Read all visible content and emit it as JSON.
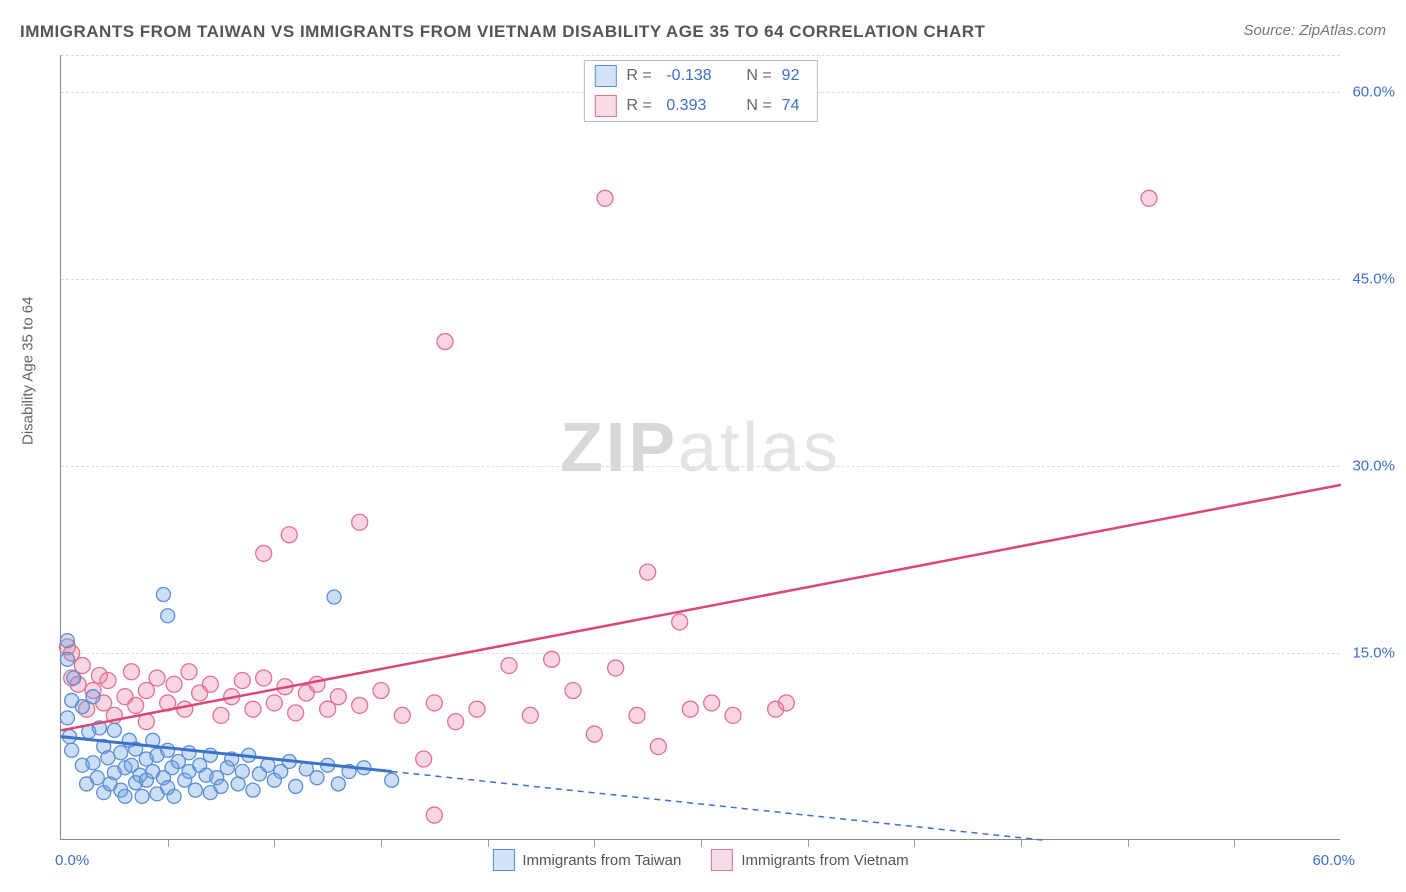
{
  "title": "IMMIGRANTS FROM TAIWAN VS IMMIGRANTS FROM VIETNAM DISABILITY AGE 35 TO 64 CORRELATION CHART",
  "source": "Source: ZipAtlas.com",
  "ylabel": "Disability Age 35 to 64",
  "watermark_a": "ZIP",
  "watermark_b": "atlas",
  "chart": {
    "type": "scatter",
    "xlim": [
      0,
      60
    ],
    "ylim": [
      0,
      63
    ],
    "x_axis_min_label": "0.0%",
    "x_axis_max_label": "60.0%",
    "x_tick_positions": [
      5,
      10,
      15,
      20,
      25,
      30,
      35,
      40,
      45,
      50,
      55
    ],
    "y_gridlines": [
      15,
      30,
      45,
      60,
      63
    ],
    "y_tick_labels": {
      "15": "15.0%",
      "30": "30.0%",
      "45": "45.0%",
      "60": "60.0%"
    },
    "background_color": "#ffffff",
    "grid_color": "#dcdcdc",
    "axis_color": "#888888",
    "tick_label_color": "#3f6fc6",
    "series": [
      {
        "name": "Immigrants from Taiwan",
        "color_fill": "rgba(110, 160, 230, 0.35)",
        "color_stroke": "#5a8fd6",
        "swatch_fill": "#d2e3f7",
        "swatch_border": "#5a8fd6",
        "R": "-0.138",
        "N": "92",
        "marker_radius": 7,
        "trend": {
          "x1": 0,
          "y1": 8.3,
          "x2": 15.5,
          "y2": 5.5,
          "stroke": "#3a73c9",
          "width": 3,
          "solid": true
        },
        "trend_ext": {
          "x1": 15.5,
          "y1": 5.5,
          "x2": 46,
          "y2": 0,
          "stroke": "#3a73c9",
          "width": 1.5,
          "dash": "6 5"
        },
        "points": [
          [
            0.3,
            14.5
          ],
          [
            0.3,
            16.0
          ],
          [
            0.5,
            11.2
          ],
          [
            0.3,
            9.8
          ],
          [
            0.4,
            8.3
          ],
          [
            0.6,
            13.0
          ],
          [
            0.5,
            7.2
          ],
          [
            1.0,
            10.7
          ],
          [
            1.0,
            6.0
          ],
          [
            1.2,
            4.5
          ],
          [
            1.3,
            8.7
          ],
          [
            1.5,
            11.5
          ],
          [
            1.5,
            6.2
          ],
          [
            1.7,
            5.0
          ],
          [
            1.8,
            9.0
          ],
          [
            2.0,
            3.8
          ],
          [
            2.0,
            7.5
          ],
          [
            2.2,
            6.6
          ],
          [
            2.3,
            4.5
          ],
          [
            2.5,
            5.4
          ],
          [
            2.5,
            8.8
          ],
          [
            2.8,
            7.0
          ],
          [
            2.8,
            4.0
          ],
          [
            3.0,
            5.8
          ],
          [
            3.0,
            3.5
          ],
          [
            3.2,
            8.0
          ],
          [
            3.3,
            6.0
          ],
          [
            3.5,
            4.6
          ],
          [
            3.5,
            7.3
          ],
          [
            3.7,
            5.2
          ],
          [
            3.8,
            3.5
          ],
          [
            4.0,
            6.5
          ],
          [
            4.0,
            4.8
          ],
          [
            4.3,
            5.5
          ],
          [
            4.3,
            8.0
          ],
          [
            4.5,
            3.7
          ],
          [
            4.5,
            6.8
          ],
          [
            4.8,
            5.0
          ],
          [
            5.0,
            4.2
          ],
          [
            5.0,
            7.2
          ],
          [
            5.2,
            5.8
          ],
          [
            5.3,
            3.5
          ],
          [
            5.5,
            6.3
          ],
          [
            5.8,
            4.8
          ],
          [
            6.0,
            5.5
          ],
          [
            6.0,
            7.0
          ],
          [
            6.3,
            4.0
          ],
          [
            6.5,
            6.0
          ],
          [
            6.8,
            5.2
          ],
          [
            7.0,
            3.8
          ],
          [
            7.0,
            6.8
          ],
          [
            7.3,
            5.0
          ],
          [
            7.5,
            4.3
          ],
          [
            7.8,
            5.8
          ],
          [
            8.0,
            6.5
          ],
          [
            8.3,
            4.5
          ],
          [
            8.5,
            5.5
          ],
          [
            8.8,
            6.8
          ],
          [
            9.0,
            4.0
          ],
          [
            9.3,
            5.3
          ],
          [
            9.7,
            6.0
          ],
          [
            10.0,
            4.8
          ],
          [
            10.3,
            5.5
          ],
          [
            10.7,
            6.3
          ],
          [
            11.0,
            4.3
          ],
          [
            11.5,
            5.7
          ],
          [
            12.0,
            5.0
          ],
          [
            12.5,
            6.0
          ],
          [
            13.0,
            4.5
          ],
          [
            13.5,
            5.5
          ],
          [
            14.2,
            5.8
          ],
          [
            15.5,
            4.8
          ],
          [
            4.8,
            19.7
          ],
          [
            5.0,
            18.0
          ],
          [
            12.8,
            19.5
          ]
        ]
      },
      {
        "name": "Immigrants from Vietnam",
        "color_fill": "rgba(235, 120, 150, 0.30)",
        "color_stroke": "#e37095",
        "swatch_fill": "#f9dde5",
        "swatch_border": "#e37095",
        "R": "0.393",
        "N": "74",
        "marker_radius": 8,
        "trend": {
          "x1": 0,
          "y1": 8.8,
          "x2": 60,
          "y2": 28.5,
          "stroke": "#d94876",
          "width": 2.5,
          "solid": true
        },
        "points": [
          [
            0.3,
            15.5
          ],
          [
            0.5,
            13.0
          ],
          [
            0.8,
            12.5
          ],
          [
            1.0,
            14.0
          ],
          [
            1.2,
            10.5
          ],
          [
            1.5,
            12.0
          ],
          [
            1.8,
            13.2
          ],
          [
            2.0,
            11.0
          ],
          [
            2.2,
            12.8
          ],
          [
            2.5,
            10.0
          ],
          [
            3.0,
            11.5
          ],
          [
            3.3,
            13.5
          ],
          [
            3.5,
            10.8
          ],
          [
            4.0,
            12.0
          ],
          [
            4.0,
            9.5
          ],
          [
            4.5,
            13.0
          ],
          [
            5.0,
            11.0
          ],
          [
            5.3,
            12.5
          ],
          [
            5.8,
            10.5
          ],
          [
            6.0,
            13.5
          ],
          [
            6.5,
            11.8
          ],
          [
            7.0,
            12.5
          ],
          [
            7.5,
            10.0
          ],
          [
            8.0,
            11.5
          ],
          [
            8.5,
            12.8
          ],
          [
            9.0,
            10.5
          ],
          [
            9.5,
            13.0
          ],
          [
            10.0,
            11.0
          ],
          [
            10.5,
            12.3
          ],
          [
            11.0,
            10.2
          ],
          [
            11.5,
            11.8
          ],
          [
            12.0,
            12.5
          ],
          [
            12.5,
            10.5
          ],
          [
            13.0,
            11.5
          ],
          [
            14.0,
            10.8
          ],
          [
            15.0,
            12.0
          ],
          [
            16.0,
            10.0
          ],
          [
            17.0,
            6.5
          ],
          [
            17.5,
            11.0
          ],
          [
            18.5,
            9.5
          ],
          [
            19.5,
            10.5
          ],
          [
            21.0,
            14.0
          ],
          [
            22.0,
            10.0
          ],
          [
            23.0,
            14.5
          ],
          [
            24.0,
            12.0
          ],
          [
            25.0,
            8.5
          ],
          [
            26.0,
            13.8
          ],
          [
            27.0,
            10.0
          ],
          [
            28.0,
            7.5
          ],
          [
            29.0,
            17.5
          ],
          [
            29.5,
            10.5
          ],
          [
            30.5,
            11.0
          ],
          [
            31.5,
            10.0
          ],
          [
            33.5,
            10.5
          ],
          [
            17.5,
            2.0
          ],
          [
            9.5,
            23.0
          ],
          [
            10.7,
            24.5
          ],
          [
            14.0,
            25.5
          ],
          [
            18.0,
            40.0
          ],
          [
            25.5,
            51.5
          ],
          [
            27.5,
            21.5
          ],
          [
            34.0,
            11.0
          ],
          [
            51.0,
            51.5
          ],
          [
            0.5,
            15.0
          ]
        ]
      }
    ]
  }
}
